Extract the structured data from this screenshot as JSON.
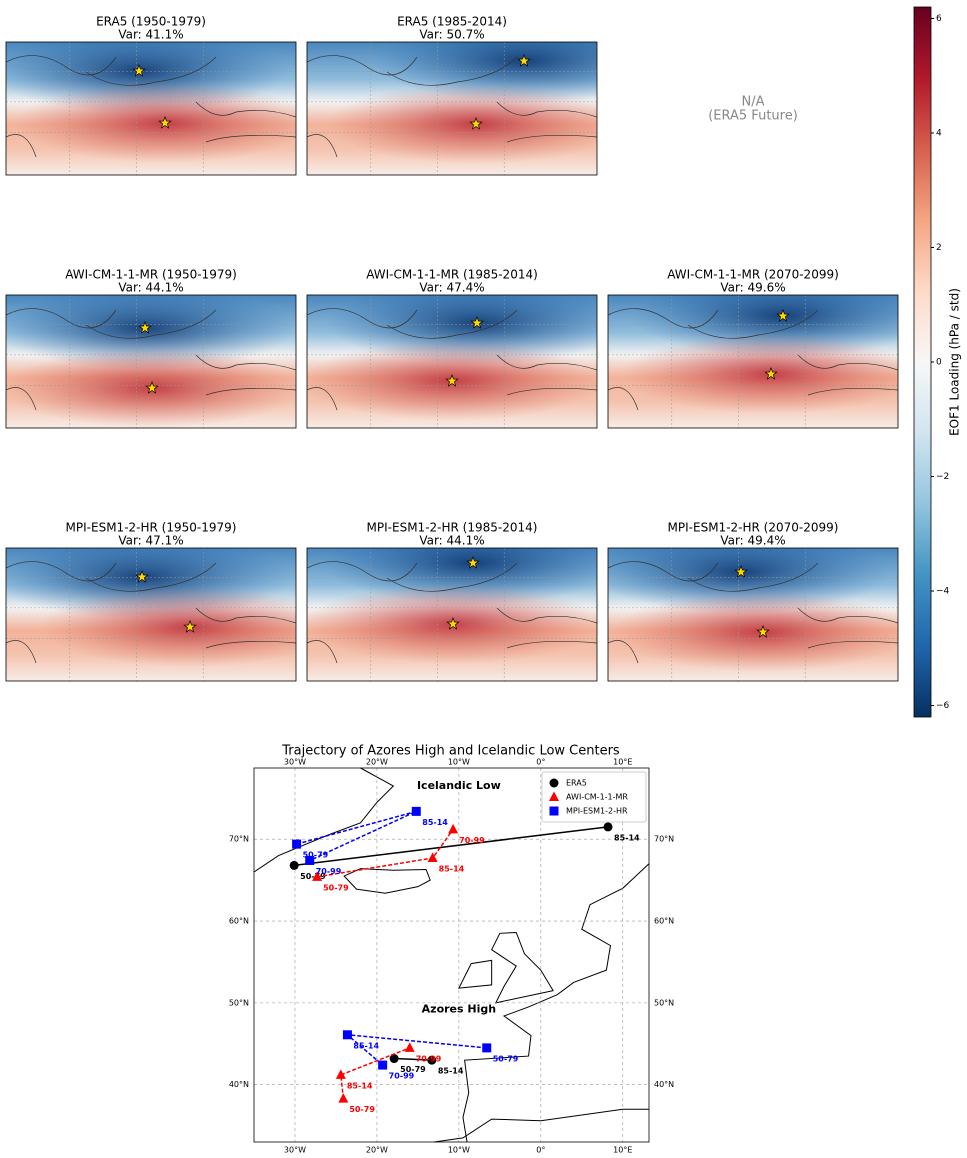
{
  "panels": [
    {
      "title": "ERA5 (1950-1979)",
      "subtitle": "Var: 41.1%"
    },
    {
      "title": "ERA5 (1985-2014)",
      "subtitle": "Var: 50.7%"
    },
    {
      "text": [
        "N/A",
        "(ERA5 Future)"
      ]
    },
    {
      "title": "AWI-CM-1-1-MR (1950-1979)",
      "subtitle": "Var: 44.1%"
    },
    {
      "title": "AWI-CM-1-1-MR (1985-2014)",
      "subtitle": "Var: 47.4%"
    },
    {
      "title": "AWI-CM-1-1-MR (2070-2099)",
      "subtitle": "Var: 49.6%"
    },
    {
      "title": "MPI-ESM1-2-HR (1950-1979)",
      "subtitle": "Var: 47.1%"
    },
    {
      "title": "MPI-ESM1-2-HR (1985-2014)",
      "subtitle": "Var: 44.1%"
    },
    {
      "title": "MPI-ESM1-2-HR (2070-2099)",
      "subtitle": "Var: 49.4%"
    }
  ],
  "colorbar": {
    "label": "EOF1 Loading (hPa / std)",
    "lim": [
      -6.2,
      6.2
    ],
    "colors": [
      "#053061",
      "#2166ac",
      "#4393c3",
      "#92c5de",
      "#d1e5f0",
      "#f7f7f7",
      "#fddbc7",
      "#f4a582",
      "#d6604d",
      "#b2182b",
      "#67001f"
    ],
    "ticks": [
      {
        "value": -6,
        "label": "−6"
      },
      {
        "value": -4,
        "label": "−4"
      },
      {
        "value": -2,
        "label": "−2"
      },
      0,
      2,
      4,
      6
    ]
  },
  "chart_data": {
    "type": "line",
    "title": "Trajectory of Azores High and Icelandic Low Centers",
    "xlim": [
      -35,
      13.2
    ],
    "ylim": [
      33,
      78.7
    ],
    "xticks": [
      {
        "value": -30,
        "label": "30°W"
      },
      {
        "value": -20,
        "label": "20°W"
      },
      {
        "value": -10,
        "label": "10°W"
      },
      {
        "value": 0,
        "label": "0°"
      },
      {
        "value": 10,
        "label": "10°E"
      }
    ],
    "yticks": [
      {
        "value": 40,
        "label": "40°N"
      },
      {
        "value": 50,
        "label": "50°N"
      },
      {
        "value": 60,
        "label": "60°N"
      },
      {
        "value": 70,
        "label": "70°N"
      }
    ],
    "grid": true,
    "legend": "upper right",
    "annotations": [
      {
        "text": "Icelandic Low",
        "x": -10,
        "y": 76.5
      },
      {
        "text": "Azores High",
        "x": -10,
        "y": 49.2
      }
    ],
    "series": [
      {
        "name": "ERA5",
        "color": "#000000",
        "marker": "circle",
        "linestyle": "solid",
        "x": [
          -30.1,
          8.2,
          null,
          -17.9,
          -13.3
        ],
        "y": [
          66.8,
          71.5,
          null,
          43.2,
          43.0
        ],
        "point_labels": [
          "50-79",
          "85-14",
          null,
          "50-79",
          "85-14"
        ]
      },
      {
        "name": "AWI-CM-1-1-MR",
        "color": "#ff0000",
        "marker": "triangle",
        "linestyle": "dashed",
        "x": [
          -27.3,
          -13.2,
          -10.7,
          null,
          -24.1,
          -24.4,
          -16.0
        ],
        "y": [
          65.4,
          67.7,
          71.2,
          null,
          38.3,
          41.2,
          44.5
        ],
        "point_labels": [
          "50-79",
          "85-14",
          "70-99",
          null,
          "50-79",
          "85-14",
          "70-99"
        ]
      },
      {
        "name": "MPI-ESM1-2-HR",
        "color": "#0000ff",
        "marker": "square",
        "linestyle": "dashed",
        "x": [
          -29.8,
          -15.2,
          -28.2,
          null,
          -6.6,
          -23.6,
          -19.3
        ],
        "y": [
          69.4,
          73.4,
          67.4,
          null,
          44.5,
          46.1,
          42.4
        ],
        "point_labels": [
          "50-79",
          "85-14",
          "70-99",
          null,
          "50-79",
          "85-14",
          "70-99"
        ]
      }
    ]
  }
}
